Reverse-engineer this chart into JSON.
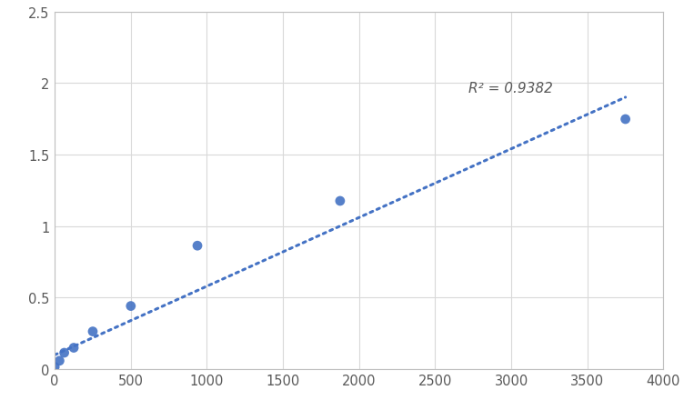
{
  "x_data": [
    0,
    31.25,
    62.5,
    125,
    250,
    500,
    937.5,
    1875,
    3750
  ],
  "y_data": [
    0.014,
    0.057,
    0.113,
    0.148,
    0.262,
    0.44,
    0.862,
    1.175,
    1.747
  ],
  "dot_color": "#4472C4",
  "dot_size": 60,
  "line_color": "#4472C4",
  "line_style": "dotted",
  "line_width": 2.2,
  "r_squared": "R² = 0.9382",
  "r_squared_x": 2720,
  "r_squared_y": 1.94,
  "trendline_x0": 0,
  "trendline_x1": 3750,
  "trendline_y0": 0.098,
  "trendline_y1": 1.9,
  "xlim": [
    0,
    4000
  ],
  "ylim": [
    0,
    2.5
  ],
  "xticks": [
    0,
    500,
    1000,
    1500,
    2000,
    2500,
    3000,
    3500,
    4000
  ],
  "yticks": [
    0,
    0.5,
    1.0,
    1.5,
    2.0,
    2.5
  ],
  "grid_color": "#D9D9D9",
  "background_color": "#FFFFFF",
  "tick_label_fontsize": 10.5,
  "annotation_fontsize": 11
}
